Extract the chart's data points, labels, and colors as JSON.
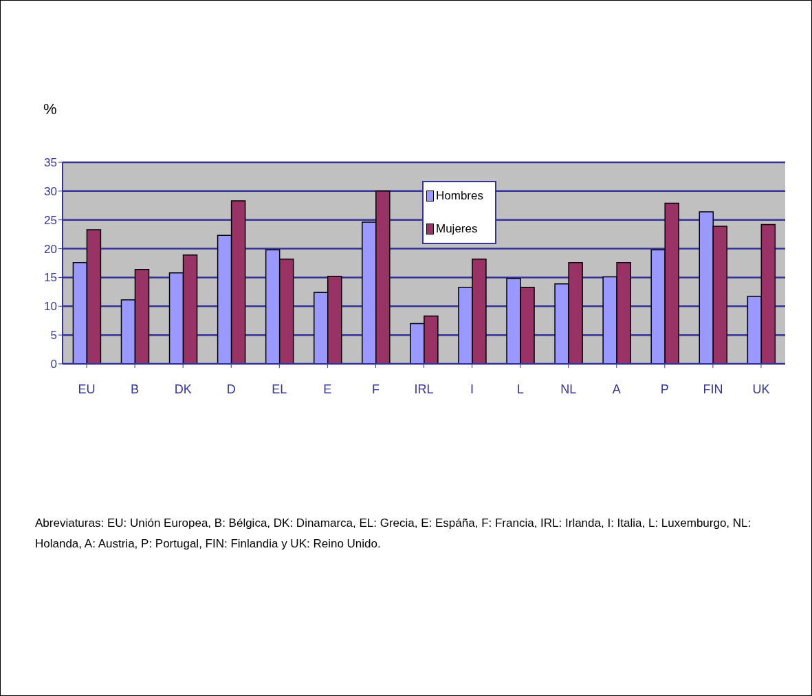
{
  "chart_data": {
    "type": "bar",
    "ylabel": "%",
    "categories": [
      "EU",
      "B",
      "DK",
      "D",
      "EL",
      "E",
      "F",
      "IRL",
      "I",
      "L",
      "NL",
      "A",
      "P",
      "FIN",
      "UK"
    ],
    "series": [
      {
        "name": "Hombres",
        "color": "#9999ff",
        "values": [
          17.6,
          11.1,
          15.8,
          22.3,
          19.8,
          12.4,
          24.6,
          7.0,
          13.3,
          14.8,
          13.9,
          15.1,
          19.8,
          26.4,
          11.7
        ]
      },
      {
        "name": "Mujeres",
        "color": "#993366",
        "values": [
          23.3,
          16.4,
          18.9,
          28.3,
          18.2,
          15.2,
          30.0,
          8.3,
          18.2,
          13.3,
          17.6,
          17.6,
          27.9,
          23.9,
          24.2
        ]
      }
    ],
    "ylim": [
      0,
      35
    ],
    "yticks": [
      0,
      5,
      10,
      15,
      20,
      25,
      30,
      35
    ],
    "grid": "y",
    "legend": "top",
    "annotations": [
      "Abreviaturas: EU: Unión Europea, B: Bélgica, DK: Dinamarca, EL: Grecia, E: Espáña, F: Francia, IRL: Irlanda, I: Italia, L: Luxemburgo, NL: Holanda, A: Austria, P: Portugal, FIN: Finlandia y UK: Reino Unido."
    ]
  }
}
